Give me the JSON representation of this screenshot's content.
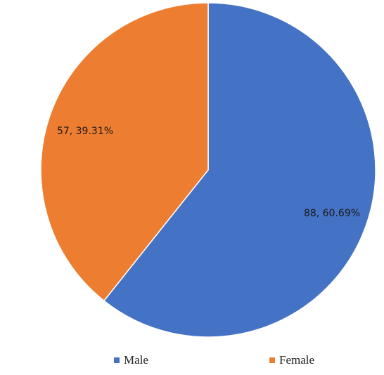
{
  "chart_data": {
    "type": "pie",
    "series": [
      {
        "name": "Male",
        "value": 88,
        "percent": 60.69,
        "label": "88, 60.69%",
        "color": "#4472c4"
      },
      {
        "name": "Female",
        "value": 57,
        "percent": 39.31,
        "label": "57, 39.31%",
        "color": "#ed7d31"
      }
    ],
    "legend": {
      "position": "bottom",
      "entries": [
        "Male",
        "Female"
      ]
    },
    "start_angle": "12 o'clock",
    "direction": "clockwise"
  }
}
